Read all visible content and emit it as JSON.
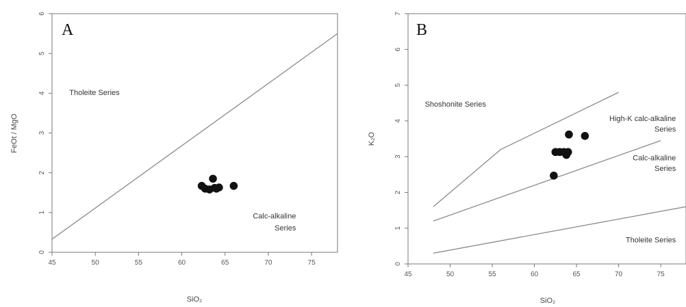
{
  "chart_data": [
    {
      "type": "scatter",
      "panel_label": "A",
      "xlabel": "SiO₂",
      "ylabel": "FeOt / MgO",
      "xlim": [
        45,
        78
      ],
      "ylim": [
        0,
        6
      ],
      "x_ticks": [
        "45",
        "50",
        "55",
        "60",
        "65",
        "70",
        "75"
      ],
      "y_ticks": [
        "0",
        "1",
        "2",
        "3",
        "4",
        "5",
        "6"
      ],
      "annotations": [
        {
          "text": "Tholeite Series",
          "x": 47.0,
          "y": 3.95
        },
        {
          "text": "Calc-alkaline",
          "x": 73.2,
          "y": 0.85
        },
        {
          "text": "Series",
          "x": 73.2,
          "y": 0.55
        }
      ],
      "lines": [
        {
          "x": [
            45,
            78
          ],
          "y": [
            0.33,
            5.5
          ]
        }
      ],
      "points": [
        {
          "x": 62.3,
          "y": 1.67
        },
        {
          "x": 62.7,
          "y": 1.6
        },
        {
          "x": 63.2,
          "y": 1.58
        },
        {
          "x": 63.6,
          "y": 1.85
        },
        {
          "x": 63.8,
          "y": 1.62
        },
        {
          "x": 64.0,
          "y": 1.6
        },
        {
          "x": 64.3,
          "y": 1.63
        },
        {
          "x": 66.0,
          "y": 1.67
        }
      ]
    },
    {
      "type": "scatter",
      "panel_label": "B",
      "xlabel": "SiO₂",
      "ylabel": "K₂O",
      "xlim": [
        45,
        78
      ],
      "ylim": [
        0,
        7
      ],
      "x_ticks": [
        "45",
        "50",
        "55",
        "60",
        "65",
        "70",
        "75"
      ],
      "y_ticks": [
        "0",
        "1",
        "2",
        "3",
        "4",
        "5",
        "6",
        "7"
      ],
      "annotations": [
        {
          "text": "Shoshonite Series",
          "x": 47.0,
          "y": 4.4
        },
        {
          "text": "High-K calc-alkaline",
          "x": 76.8,
          "y": 4.0
        },
        {
          "text": "Series",
          "x": 76.8,
          "y": 3.7
        },
        {
          "text": "Calc-alkaline",
          "x": 76.8,
          "y": 2.9
        },
        {
          "text": "Series",
          "x": 76.8,
          "y": 2.6
        },
        {
          "text": "Tholeite Series",
          "x": 76.8,
          "y": 0.6
        }
      ],
      "lines": [
        {
          "x": [
            48,
            56,
            70
          ],
          "y": [
            1.6,
            3.2,
            4.8
          ]
        },
        {
          "x": [
            48,
            75
          ],
          "y": [
            1.2,
            3.45
          ]
        },
        {
          "x": [
            48,
            78
          ],
          "y": [
            0.3,
            1.6
          ]
        }
      ],
      "points": [
        {
          "x": 62.3,
          "y": 2.47
        },
        {
          "x": 62.5,
          "y": 3.13
        },
        {
          "x": 63.0,
          "y": 3.13
        },
        {
          "x": 63.5,
          "y": 3.13
        },
        {
          "x": 63.8,
          "y": 3.05
        },
        {
          "x": 64.0,
          "y": 3.13
        },
        {
          "x": 64.1,
          "y": 3.62
        },
        {
          "x": 66.0,
          "y": 3.58
        }
      ]
    }
  ]
}
